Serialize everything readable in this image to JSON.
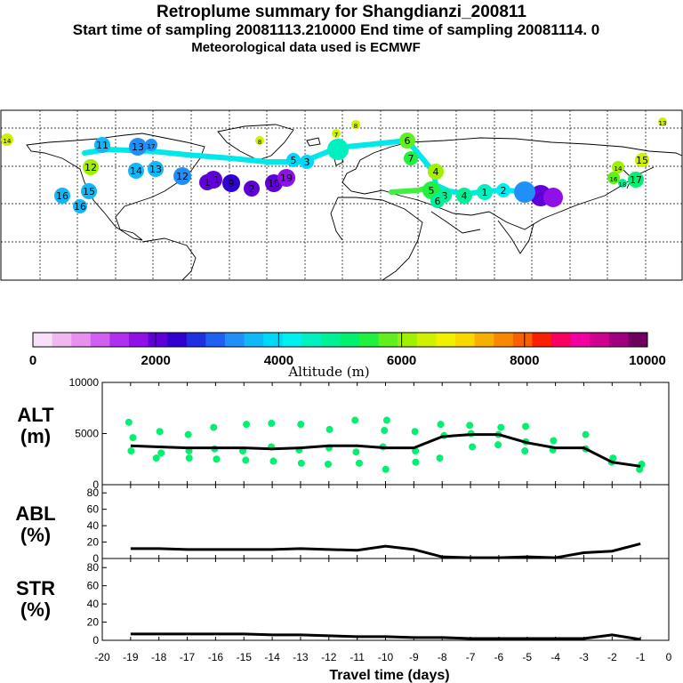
{
  "header": {
    "title": "Retroplume summary for Shangdianzi_200811",
    "subtitle": "Start time of sampling 20081113.210000      End time of sampling 20081114.      0",
    "met_line": "Meteorological data used is ECMWF"
  },
  "colors": {
    "colorbar": [
      "#f8e0f8",
      "#f0b8f0",
      "#e890f0",
      "#d060f0",
      "#b030f0",
      "#9010e8",
      "#6000d8",
      "#3000d0",
      "#2030e0",
      "#2060f0",
      "#2090f8",
      "#10b8f8",
      "#00d8f8",
      "#00f0f0",
      "#00f0c0",
      "#00f098",
      "#00f070",
      "#20f040",
      "#60f020",
      "#a0f000",
      "#d0f000",
      "#f0f000",
      "#f8d800",
      "#f8b000",
      "#f88800",
      "#f86000",
      "#f82000",
      "#f80060",
      "#f000a0",
      "#d00090",
      "#a00080",
      "#700060"
    ],
    "track": "#00e8e8",
    "alt_dots": "#00f070",
    "line": "#000000"
  },
  "map": {
    "track_labels": [
      "14",
      "16",
      "15",
      "11",
      "12",
      "14",
      "13",
      "16",
      "13",
      "17",
      "12",
      "11",
      "9",
      "10",
      "19",
      "8",
      "7",
      "5",
      "3",
      "1",
      "2",
      "6",
      "7",
      "4",
      "5",
      "3",
      "6",
      "4",
      "2",
      "1",
      "8",
      "14",
      "15",
      "16",
      "17",
      "18",
      "13"
    ]
  },
  "colorbar": {
    "tick_labels": [
      "0",
      "2000",
      "4000",
      "6000",
      "8000",
      "10000"
    ],
    "title": "Altitude (m)",
    "min": 0,
    "max": 10000
  },
  "chart_data": [
    {
      "type": "line",
      "panel": "ALT",
      "ylabel_line1": "ALT",
      "ylabel_line2": "(m)",
      "x": [
        -19,
        -18,
        -17,
        -16,
        -15,
        -14,
        -13,
        -12,
        -11,
        -10,
        -9,
        -8,
        -7,
        -6,
        -5,
        -4,
        -3,
        -2,
        -1
      ],
      "values": [
        3800,
        3700,
        3600,
        3600,
        3600,
        3500,
        3600,
        3800,
        3800,
        3600,
        3600,
        4700,
        4900,
        4900,
        4100,
        3600,
        3600,
        2200,
        1800
      ],
      "ylim": [
        0,
        10000
      ],
      "yticks": [
        "10000",
        "5000",
        "0"
      ],
      "scatter": [
        [
          -19,
          6100
        ],
        [
          -19,
          4600
        ],
        [
          -19,
          3300
        ],
        [
          -18,
          5200
        ],
        [
          -18,
          3100
        ],
        [
          -18,
          2600
        ],
        [
          -17,
          4900
        ],
        [
          -17,
          3300
        ],
        [
          -17,
          2600
        ],
        [
          -16,
          5600
        ],
        [
          -16,
          3500
        ],
        [
          -16,
          2500
        ],
        [
          -15,
          5900
        ],
        [
          -15,
          3300
        ],
        [
          -15,
          2400
        ],
        [
          -14,
          6000
        ],
        [
          -14,
          3700
        ],
        [
          -14,
          2300
        ],
        [
          -13,
          5900
        ],
        [
          -13,
          3400
        ],
        [
          -13,
          2100
        ],
        [
          -12,
          5400
        ],
        [
          -12,
          3600
        ],
        [
          -12,
          2000
        ],
        [
          -11,
          6300
        ],
        [
          -11,
          3200
        ],
        [
          -11,
          2100
        ],
        [
          -10,
          6300
        ],
        [
          -10,
          5300
        ],
        [
          -10,
          3700
        ],
        [
          -10,
          1500
        ],
        [
          -9,
          5200
        ],
        [
          -9,
          3300
        ],
        [
          -9,
          2200
        ],
        [
          -8,
          5900
        ],
        [
          -8,
          4800
        ],
        [
          -8,
          2600
        ],
        [
          -7,
          5800
        ],
        [
          -7,
          5000
        ],
        [
          -7,
          3700
        ],
        [
          -6,
          5600
        ],
        [
          -6,
          4900
        ],
        [
          -6,
          3900
        ],
        [
          -5,
          5700
        ],
        [
          -5,
          4200
        ],
        [
          -5,
          3300
        ],
        [
          -4,
          4300
        ],
        [
          -4,
          3400
        ],
        [
          -3,
          4900
        ],
        [
          -3,
          3500
        ],
        [
          -2,
          2600
        ],
        [
          -2,
          2200
        ],
        [
          -1,
          2000
        ],
        [
          -1,
          1500
        ]
      ]
    },
    {
      "type": "line",
      "panel": "ABL",
      "ylabel_line1": "ABL",
      "ylabel_line2": "(%)",
      "x": [
        -19,
        -18,
        -17,
        -16,
        -15,
        -14,
        -13,
        -12,
        -11,
        -10,
        -9,
        -8,
        -7,
        -6,
        -5,
        -4,
        -3,
        -2,
        -1
      ],
      "values": [
        12,
        12,
        11,
        11,
        11,
        11,
        12,
        11,
        10,
        15,
        11,
        2,
        1,
        1,
        2,
        1,
        7,
        9,
        18
      ],
      "ylim": [
        0,
        90
      ],
      "yticks": [
        "80",
        "60",
        "40",
        "20",
        "0"
      ]
    },
    {
      "type": "line",
      "panel": "STR",
      "ylabel_line1": "STR",
      "ylabel_line2": "(%)",
      "x": [
        -19,
        -18,
        -17,
        -16,
        -15,
        -14,
        -13,
        -12,
        -11,
        -10,
        -9,
        -8,
        -7,
        -6,
        -5,
        -4,
        -3,
        -2,
        -1
      ],
      "values": [
        7,
        7,
        7,
        7,
        7,
        6,
        6,
        5,
        4,
        4,
        3,
        3,
        2,
        2,
        2,
        2,
        2,
        6,
        1
      ],
      "ylim": [
        0,
        90
      ],
      "yticks": [
        "80",
        "60",
        "40",
        "20",
        "0"
      ],
      "xlabel": "Travel time (days)",
      "xticks": [
        "-20",
        "-19",
        "-18",
        "-17",
        "-16",
        "-15",
        "-14",
        "-13",
        "-12",
        "-11",
        "-10",
        "-9",
        "-8",
        "-7",
        "-6",
        "-5",
        "-4",
        "-3",
        "-2",
        "-1",
        "0"
      ]
    }
  ]
}
